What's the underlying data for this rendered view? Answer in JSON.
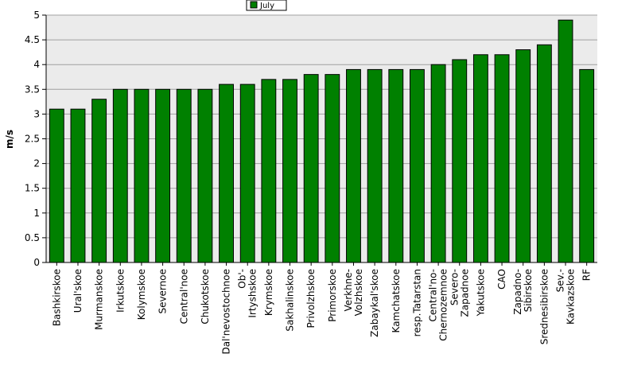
{
  "chart_data": {
    "type": "bar",
    "title": "",
    "xlabel": "",
    "ylabel": "m/s",
    "ylim": [
      0,
      5
    ],
    "yticks": [
      "0",
      "0.5",
      "1",
      "1.5",
      "2",
      "2.5",
      "3",
      "3.5",
      "4",
      "4.5",
      "5"
    ],
    "grid": true,
    "legend_position": "top-center",
    "categories": [
      "Bashkirskoe",
      "Ural'skoe",
      "Murmanskoe",
      "Irkutskoe",
      "Kolymskoe",
      "Severnoe",
      "Central'noe",
      "Chukotskoe",
      "Dal'nevostochnoe",
      "Ob'-\nIrtyshskoe",
      "Krymskoe",
      "Sakhalinskoe",
      "Privolzhskoe",
      "Primorskoe",
      "Verkhne-\nVolzhskoe",
      "Zabaykal'skoe",
      "Kamchatskoe",
      "resp.Tatarstan",
      "Central'no-\nChernozemnoe",
      "Severo-\nZapadnoe",
      "Yakutskoe",
      "CAO",
      "Zapadno-\nSibirskoe",
      "Srednesibirskoe",
      "Sev.-\nKavkazskoe",
      "RF"
    ],
    "series": [
      {
        "name": "July",
        "color": "#008000",
        "values": [
          3.1,
          3.1,
          3.3,
          3.5,
          3.5,
          3.5,
          3.5,
          3.5,
          3.6,
          3.6,
          3.7,
          3.7,
          3.8,
          3.8,
          3.9,
          3.9,
          3.9,
          3.9,
          4.0,
          4.1,
          4.2,
          4.2,
          4.3,
          4.4,
          4.9,
          3.9
        ]
      }
    ]
  }
}
